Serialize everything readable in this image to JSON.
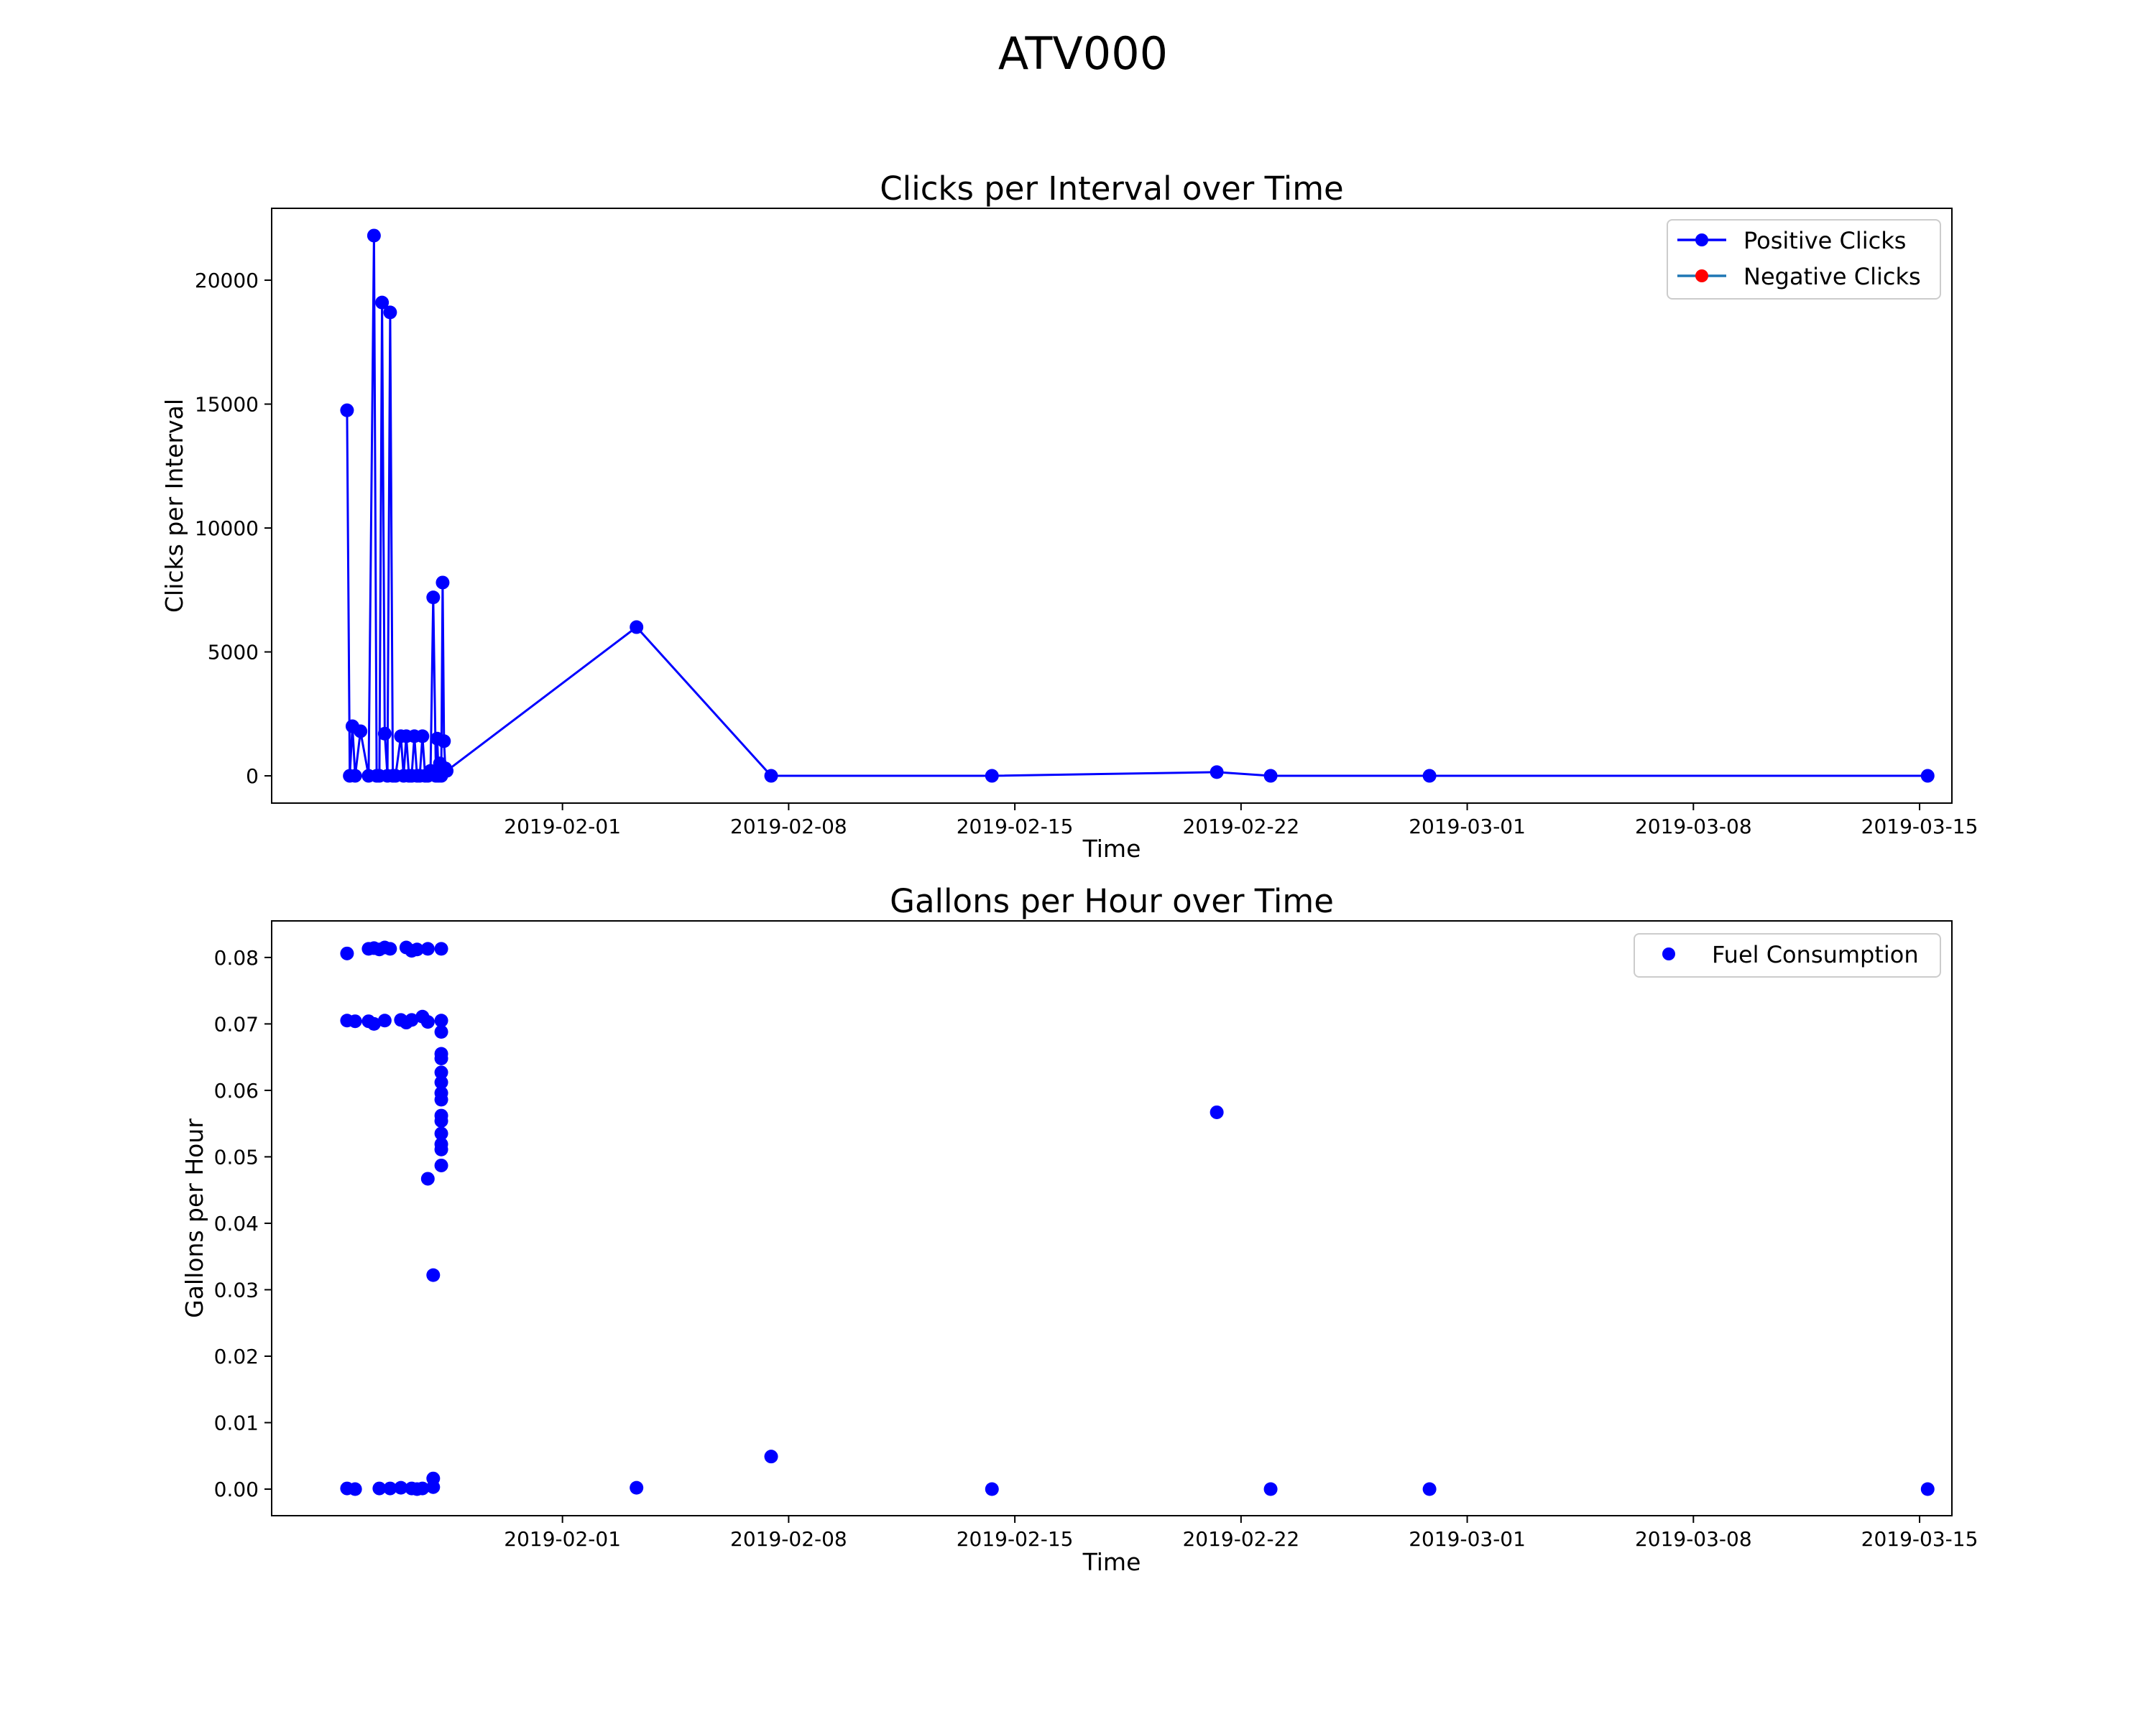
{
  "figure": {
    "suptitle": "ATV000"
  },
  "colors": {
    "positive": "#0000ff",
    "negative": "#ff0000",
    "negative_line": "#1f77b4",
    "fuel": "#0000ff",
    "axes": "#000000"
  },
  "chart_data": [
    {
      "type": "line",
      "title": "Clicks per Interval over Time",
      "xlabel": "Time",
      "ylabel": "Clicks per Interval",
      "x_axis": "date",
      "xlim": [
        "2019-01-23",
        "2019-03-16"
      ],
      "ylim": [
        -1100,
        22900
      ],
      "yticks": [
        0,
        5000,
        10000,
        15000,
        20000
      ],
      "xticks": [
        "2019-02-01",
        "2019-02-08",
        "2019-02-15",
        "2019-02-22",
        "2019-03-01",
        "2019-03-08",
        "2019-03-15"
      ],
      "grid": false,
      "legend": "upper right",
      "series": [
        {
          "name": "Positive Clicks",
          "color": "#0000ff",
          "marker": "circle",
          "line": true,
          "x": [
            "2019-01-25T08:00",
            "2019-01-25T10:00",
            "2019-01-25T12:00",
            "2019-01-25T14:00",
            "2019-01-25T18:00",
            "2019-01-26T00:00",
            "2019-01-26T04:00",
            "2019-01-26T06:00",
            "2019-01-26T08:00",
            "2019-01-26T10:00",
            "2019-01-26T12:00",
            "2019-01-26T14:00",
            "2019-01-26T16:00",
            "2019-01-26T18:00",
            "2019-01-26T20:00",
            "2019-01-27T00:00",
            "2019-01-27T02:00",
            "2019-01-27T04:00",
            "2019-01-27T06:00",
            "2019-01-27T08:00",
            "2019-01-27T10:00",
            "2019-01-27T12:00",
            "2019-01-27T14:00",
            "2019-01-27T16:00",
            "2019-01-27T18:00",
            "2019-01-27T20:00",
            "2019-01-27T22:00",
            "2019-01-28T00:00",
            "2019-01-28T02:00",
            "2019-01-28T03:00",
            "2019-01-28T04:00",
            "2019-01-28T05:00",
            "2019-01-28T06:00",
            "2019-01-28T07:00",
            "2019-01-28T08:00",
            "2019-01-28T09:00",
            "2019-01-28T10:00",
            "2019-02-03T07:00",
            "2019-02-07T11:00",
            "2019-02-14T07:00",
            "2019-02-21T06:00",
            "2019-02-22T22:00",
            "2019-02-27T20:00",
            "2019-03-15T06:00"
          ],
          "y": [
            14750,
            0,
            2000,
            0,
            1800,
            0,
            21800,
            0,
            0,
            19100,
            1700,
            0,
            18700,
            0,
            0,
            1600,
            0,
            1600,
            0,
            0,
            1600,
            0,
            0,
            1600,
            0,
            0,
            200,
            7200,
            0,
            1500,
            0,
            500,
            0,
            7800,
            1400,
            300,
            200,
            6000,
            0,
            0,
            150,
            0,
            0,
            0
          ]
        },
        {
          "name": "Negative Clicks",
          "color": "#ff0000",
          "marker": "circle",
          "line": true,
          "x": [],
          "y": []
        }
      ]
    },
    {
      "type": "scatter",
      "title": "Gallons per Hour over Time",
      "xlabel": "Time",
      "ylabel": "Gallons per Hour",
      "x_axis": "date",
      "xlim": [
        "2019-01-23",
        "2019-03-16"
      ],
      "ylim": [
        -0.004,
        0.0855
      ],
      "yticks": [
        0.0,
        0.01,
        0.02,
        0.03,
        0.04,
        0.05,
        0.06,
        0.07,
        0.08
      ],
      "ytick_labels": [
        "0.00",
        "0.01",
        "0.02",
        "0.03",
        "0.04",
        "0.05",
        "0.06",
        "0.07",
        "0.08"
      ],
      "xticks": [
        "2019-02-01",
        "2019-02-08",
        "2019-02-15",
        "2019-02-22",
        "2019-03-01",
        "2019-03-08",
        "2019-03-15"
      ],
      "grid": false,
      "legend": "upper right",
      "series": [
        {
          "name": "Fuel Consumption",
          "color": "#0000ff",
          "marker": "circle",
          "line": false,
          "x": [
            "2019-01-25T08:00",
            "2019-01-25T08:00",
            "2019-01-25T08:00",
            "2019-01-25T14:00",
            "2019-01-25T14:00",
            "2019-01-26T00:00",
            "2019-01-26T00:00",
            "2019-01-26T04:00",
            "2019-01-26T04:00",
            "2019-01-26T08:00",
            "2019-01-26T08:00",
            "2019-01-26T12:00",
            "2019-01-26T12:00",
            "2019-01-26T16:00",
            "2019-01-26T16:00",
            "2019-01-27T00:00",
            "2019-01-27T00:00",
            "2019-01-27T04:00",
            "2019-01-27T04:00",
            "2019-01-27T08:00",
            "2019-01-27T08:00",
            "2019-01-27T08:00",
            "2019-01-27T12:00",
            "2019-01-27T12:00",
            "2019-01-27T16:00",
            "2019-01-27T16:00",
            "2019-01-27T20:00",
            "2019-01-27T20:00",
            "2019-01-27T20:00",
            "2019-01-28T00:00",
            "2019-01-28T00:00",
            "2019-01-28T00:00",
            "2019-01-28T06:00",
            "2019-01-28T06:00",
            "2019-01-28T06:00",
            "2019-01-28T06:00",
            "2019-01-28T06:00",
            "2019-01-28T06:00",
            "2019-01-28T06:00",
            "2019-01-28T06:00",
            "2019-01-28T06:00",
            "2019-01-28T06:00",
            "2019-01-28T06:00",
            "2019-01-28T06:00",
            "2019-01-28T06:00",
            "2019-01-28T06:00",
            "2019-01-28T06:00",
            "2019-02-03T07:00",
            "2019-02-07T11:00",
            "2019-02-14T07:00",
            "2019-02-21T06:00",
            "2019-02-22T22:00",
            "2019-02-27T20:00",
            "2019-03-15T06:00"
          ],
          "y": [
            0.0806,
            0.0705,
            0.0001,
            0.0704,
            0.0,
            0.0813,
            0.0704,
            0.0814,
            0.07,
            0.0812,
            0.0001,
            0.0815,
            0.0705,
            0.0813,
            0.0001,
            0.0706,
            0.0002,
            0.0815,
            0.0702,
            0.081,
            0.0706,
            0.0001,
            0.0812,
            0.0,
            0.0711,
            0.0001,
            0.0813,
            0.0703,
            0.0467,
            0.0016,
            0.0322,
            0.0003,
            0.0813,
            0.0705,
            0.0688,
            0.0655,
            0.0648,
            0.0627,
            0.0612,
            0.0596,
            0.0586,
            0.0562,
            0.0554,
            0.0535,
            0.0519,
            0.0511,
            0.0487,
            0.0002,
            0.0049,
            0.0,
            0.0567,
            0.0,
            0.0,
            0.0
          ]
        }
      ]
    }
  ]
}
